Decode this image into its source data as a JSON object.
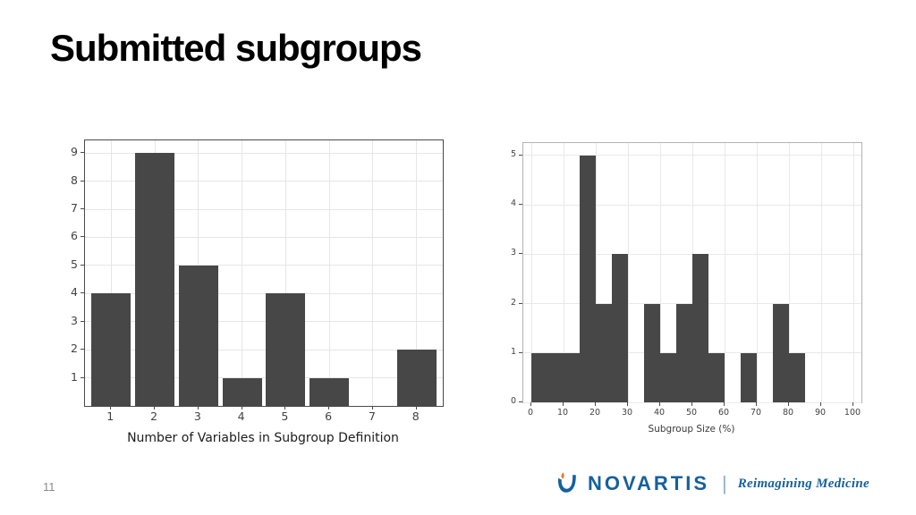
{
  "slide": {
    "title": "Submitted subgroups",
    "page_number": "11"
  },
  "footer": {
    "brand": "NOVARTIS",
    "separator": "|",
    "tagline": "Reimagining Medicine",
    "brand_color": "#15609f",
    "icon": "novartis-flame-icon"
  },
  "chart_data": [
    {
      "type": "bar",
      "title": "",
      "xlabel": "Number of Variables in Subgroup Definition",
      "ylabel": "",
      "categories": [
        1,
        2,
        3,
        4,
        5,
        6,
        7,
        8
      ],
      "values": [
        4,
        9,
        5,
        1,
        4,
        1,
        0,
        2
      ],
      "bins": [
        {
          "start": 0.55,
          "end": 1.45,
          "count": 4
        },
        {
          "start": 1.55,
          "end": 2.45,
          "count": 9
        },
        {
          "start": 2.55,
          "end": 3.45,
          "count": 5
        },
        {
          "start": 3.55,
          "end": 4.45,
          "count": 1
        },
        {
          "start": 4.55,
          "end": 5.45,
          "count": 4
        },
        {
          "start": 5.55,
          "end": 6.45,
          "count": 1
        },
        {
          "start": 6.55,
          "end": 7.45,
          "count": 0
        },
        {
          "start": 7.55,
          "end": 8.45,
          "count": 2
        }
      ],
      "xrange": [
        0.4,
        8.6
      ],
      "yrange": [
        0,
        9.45
      ],
      "xticks": [
        1,
        2,
        3,
        4,
        5,
        6,
        7,
        8
      ],
      "yticks": [
        1,
        2,
        3,
        4,
        5,
        6,
        7,
        8,
        9
      ],
      "grid": true,
      "legend": "none",
      "bar_color": "#474747",
      "grid_color": "#e6e6e6",
      "panel_border": "#4a4a4a"
    },
    {
      "type": "bar",
      "title": "",
      "xlabel": "Subgroup Size (%)",
      "ylabel": "",
      "bins": [
        {
          "start": 0,
          "end": 5,
          "count": 1
        },
        {
          "start": 5,
          "end": 10,
          "count": 1
        },
        {
          "start": 10,
          "end": 15,
          "count": 1
        },
        {
          "start": 15,
          "end": 20,
          "count": 5
        },
        {
          "start": 20,
          "end": 25,
          "count": 2
        },
        {
          "start": 25,
          "end": 30,
          "count": 3
        },
        {
          "start": 30,
          "end": 35,
          "count": 0
        },
        {
          "start": 35,
          "end": 40,
          "count": 2
        },
        {
          "start": 40,
          "end": 45,
          "count": 1
        },
        {
          "start": 45,
          "end": 50,
          "count": 2
        },
        {
          "start": 50,
          "end": 55,
          "count": 3
        },
        {
          "start": 55,
          "end": 60,
          "count": 1
        },
        {
          "start": 60,
          "end": 65,
          "count": 0
        },
        {
          "start": 65,
          "end": 70,
          "count": 1
        },
        {
          "start": 70,
          "end": 75,
          "count": 0
        },
        {
          "start": 75,
          "end": 80,
          "count": 2
        },
        {
          "start": 80,
          "end": 85,
          "count": 1
        },
        {
          "start": 85,
          "end": 100,
          "count": 0
        }
      ],
      "xrange": [
        -2.5,
        102.5
      ],
      "yrange": [
        0,
        5.25
      ],
      "xticks": [
        0,
        10,
        20,
        30,
        40,
        50,
        60,
        70,
        80,
        90,
        100
      ],
      "yticks": [
        0,
        1,
        2,
        3,
        4,
        5
      ],
      "grid": true,
      "legend": "none",
      "bar_color": "#474747",
      "grid_color": "#e9e9e9",
      "panel_border": "#b3b3b3"
    }
  ]
}
